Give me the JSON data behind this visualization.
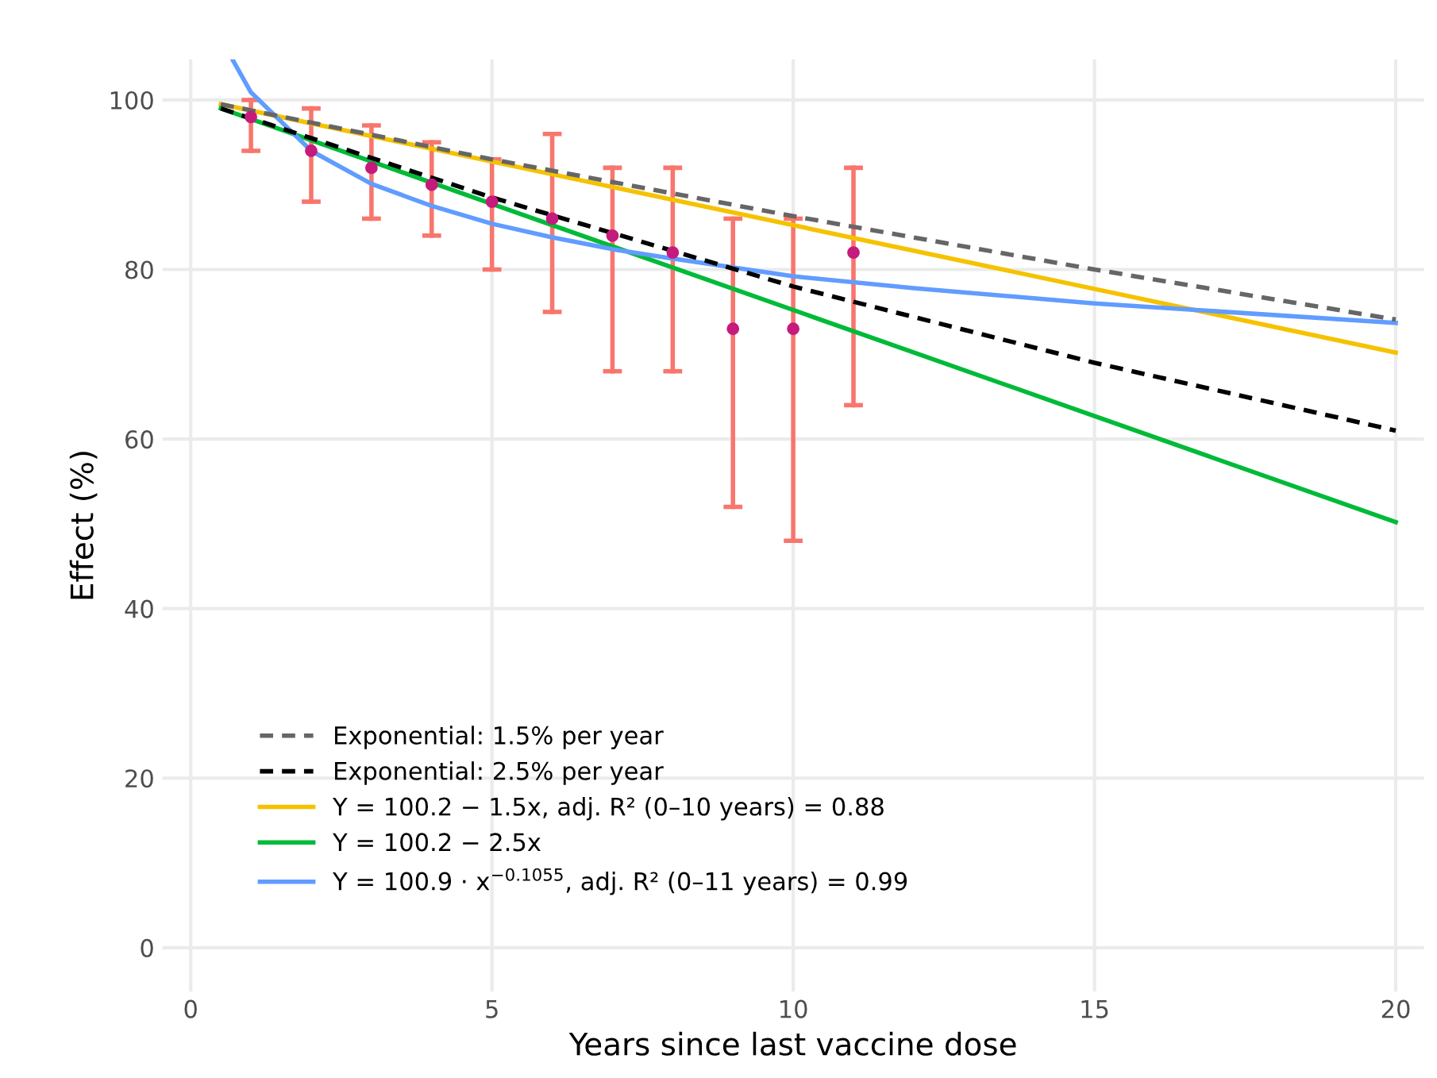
{
  "chart_data": {
    "type": "line",
    "xlabel": "Years since last vaccine dose",
    "ylabel": "Effect (%)",
    "xlim": [
      -0.47,
      20.47
    ],
    "ylim": [
      -5.2,
      104.8
    ],
    "xticks": [
      0,
      5,
      10,
      15,
      20
    ],
    "yticks": [
      0,
      20,
      40,
      60,
      80,
      100
    ],
    "grid": true,
    "legend": "bottom left",
    "series": [
      {
        "type": "scatter",
        "color": "#c51b7d",
        "marker": "circle",
        "x": [
          1,
          2,
          3,
          4,
          5,
          6,
          7,
          8,
          9,
          10,
          11
        ],
        "values": [
          98,
          94,
          92,
          90,
          88,
          86,
          84,
          82,
          73,
          73,
          82
        ],
        "errors": [
          [
            94,
            100
          ],
          [
            88,
            99
          ],
          [
            86,
            97
          ],
          [
            84,
            95
          ],
          [
            80,
            93
          ],
          [
            75,
            96
          ],
          [
            68,
            92
          ],
          [
            68,
            92
          ],
          [
            52,
            86
          ],
          [
            48,
            86
          ],
          [
            64,
            92
          ]
        ]
      },
      {
        "name": "Exponential: 1.5% per year",
        "color": "#666666",
        "line_style": "dashed",
        "x": [
          0.5,
          5,
          10,
          15,
          20
        ],
        "values": [
          99.5,
          93,
          86.3,
          80,
          74.1
        ]
      },
      {
        "name": "Exponential: 2.5% per year",
        "color": "#000000",
        "line_style": "dashed",
        "x": [
          0.5,
          5,
          10,
          15,
          20
        ],
        "values": [
          99,
          88.5,
          78,
          69,
          61
        ]
      },
      {
        "name": "Y = 100.2 − 1.5x, adj. R² (0–10 years) = 0.88",
        "color": "#f5c200",
        "line_style": "solid",
        "x": [
          0.5,
          20
        ],
        "values": [
          99.5,
          70.2
        ]
      },
      {
        "name": "Y = 100.2 − 2.5x",
        "color": "#00ba38",
        "line_style": "solid",
        "x": [
          0.5,
          20
        ],
        "values": [
          99,
          50.2
        ]
      },
      {
        "name": "Y = 100.9 · x$^{−0.1055}$, adj. R² (0–11 years) = 0.99",
        "color": "#619cff",
        "line_style": "solid",
        "x": [
          0.7,
          1,
          2,
          3,
          4,
          5,
          6,
          7,
          8,
          10,
          12,
          15,
          20
        ],
        "values": [
          104.7,
          100.9,
          94,
          90.1,
          87.5,
          85.4,
          83.8,
          82.4,
          81.3,
          79.2,
          77.8,
          76,
          73.7
        ]
      }
    ]
  }
}
